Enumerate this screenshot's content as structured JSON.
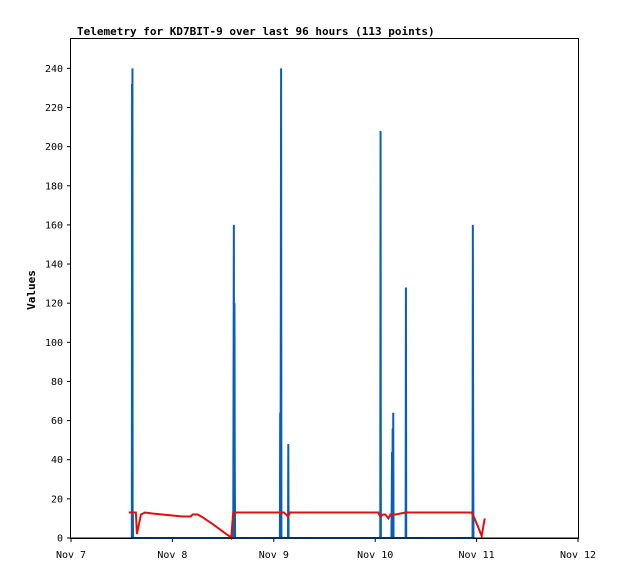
{
  "chart_data": {
    "type": "line",
    "title": "Telemetry for KD7BIT-9 over last 96 hours (113 points)",
    "xlabel": "",
    "ylabel": "Values",
    "xlim": [
      "Nov 7",
      "Nov 12"
    ],
    "x_unit": "days",
    "x_ticks": [
      {
        "label": "Nov 7",
        "value": 0
      },
      {
        "label": "Nov 8",
        "value": 1
      },
      {
        "label": "Nov 9",
        "value": 2
      },
      {
        "label": "Nov 10",
        "value": 3
      },
      {
        "label": "Nov 11",
        "value": 4
      },
      {
        "label": "Nov 12",
        "value": 5
      }
    ],
    "ylim": [
      0,
      255
    ],
    "y_ticks": [
      0,
      20,
      40,
      60,
      80,
      100,
      120,
      140,
      160,
      180,
      200,
      220,
      240
    ],
    "grid": false,
    "legend": "none",
    "series": [
      {
        "color": "#0a5fb4",
        "x": [
          0.6,
          0.602,
          0.604,
          0.606,
          0.608,
          0.61,
          0.612,
          0.614,
          1.6,
          1.603,
          1.606,
          1.609,
          1.612,
          1.615,
          1.618,
          2.06,
          2.063,
          2.066,
          2.069,
          2.072,
          2.075,
          2.078,
          2.14,
          2.143,
          2.146,
          3.05,
          3.053,
          3.056,
          3.16,
          3.163,
          3.166,
          3.169,
          3.172,
          3.175,
          3.178,
          3.181,
          3.184,
          3.3,
          3.303,
          3.306,
          3.96,
          3.963,
          3.966,
          3.969
        ],
        "y": [
          0,
          232,
          0,
          240,
          0,
          12,
          0,
          0,
          0,
          80,
          160,
          0,
          120,
          40,
          0,
          0,
          64,
          0,
          120,
          240,
          0,
          0,
          0,
          48,
          0,
          0,
          208,
          0,
          0,
          20,
          44,
          0,
          56,
          0,
          64,
          0,
          0,
          0,
          128,
          0,
          0,
          160,
          56,
          0
        ]
      },
      {
        "color": "#e01010",
        "x": [
          0.57,
          0.64,
          0.65,
          0.69,
          0.73,
          0.8,
          0.9,
          1.0,
          1.1,
          1.18,
          1.2,
          1.25,
          1.3,
          1.4,
          1.48,
          1.53,
          1.56,
          1.58,
          1.6,
          1.7,
          1.8,
          1.9,
          2.0,
          2.04,
          2.1,
          2.14,
          2.16,
          2.3,
          2.5,
          2.7,
          2.9,
          3.03,
          3.05,
          3.08,
          3.1,
          3.13,
          3.15,
          3.2,
          3.25,
          3.3,
          3.4,
          3.55,
          3.7,
          3.85,
          3.95,
          3.98,
          4.02,
          4.05,
          4.08
        ],
        "y": [
          13,
          13,
          2,
          12,
          13,
          12.5,
          12,
          11.5,
          11,
          11,
          12,
          12,
          10.5,
          7,
          4,
          2,
          1,
          0,
          13,
          13,
          13,
          13,
          13,
          13,
          13,
          11,
          13,
          13,
          13,
          13,
          13,
          13,
          11,
          12,
          12,
          10,
          12,
          12,
          12.5,
          13,
          13,
          13,
          13,
          13,
          13,
          10,
          5,
          1,
          10
        ]
      },
      {
        "color": "#000000",
        "x": [
          0.0,
          5.0
        ],
        "y": [
          0,
          0
        ]
      }
    ]
  }
}
